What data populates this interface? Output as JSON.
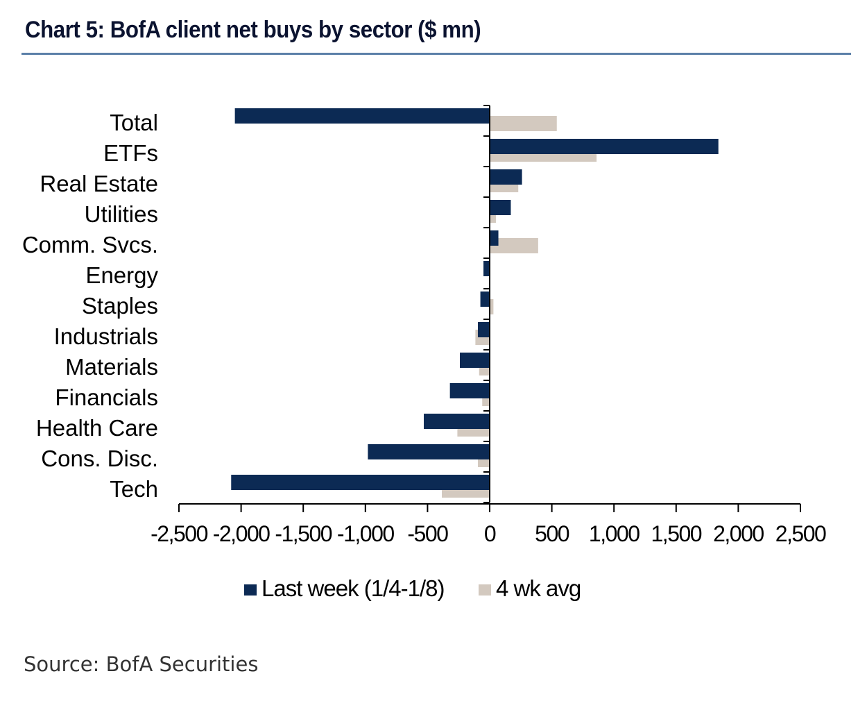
{
  "title": "Chart 5: BofA client net buys by sector ($ mn)",
  "source": "Source: BofA Securities",
  "colors": {
    "last_week": "#0c2a54",
    "avg": "#d3c9bf",
    "rule": "#5b7fa8"
  },
  "chart_data": {
    "type": "bar",
    "orientation": "horizontal",
    "title": "Chart 5: BofA client net buys by sector ($ mn)",
    "categories": [
      "Total",
      "ETFs",
      "Real Estate",
      "Utilities",
      "Comm. Svcs.",
      "Energy",
      "Staples",
      "Industrials",
      "Materials",
      "Financials",
      "Health Care",
      "Cons. Disc.",
      "Tech"
    ],
    "series": [
      {
        "name": "Last week (1/4-1/8)",
        "values": [
          -2050,
          1840,
          260,
          170,
          70,
          -50,
          -75,
          -95,
          -240,
          -320,
          -530,
          -980,
          -2080
        ]
      },
      {
        "name": "4 wk avg",
        "values": [
          540,
          860,
          230,
          50,
          390,
          0,
          30,
          -115,
          -85,
          -60,
          -260,
          -95,
          -385
        ]
      }
    ],
    "xlim": [
      -2500,
      2500
    ],
    "xticks": [
      -2500,
      -2000,
      -1500,
      -1000,
      -500,
      0,
      500,
      1000,
      1500,
      2000,
      2500
    ],
    "xtick_labels": [
      "-2,500",
      "-2,000",
      "-1,500",
      "-1,000",
      "-500",
      "0",
      "500",
      "1,000",
      "1,500",
      "2,000",
      "2,500"
    ],
    "xlabel": "",
    "ylabel": "",
    "grid": false,
    "legend": "bottom"
  }
}
